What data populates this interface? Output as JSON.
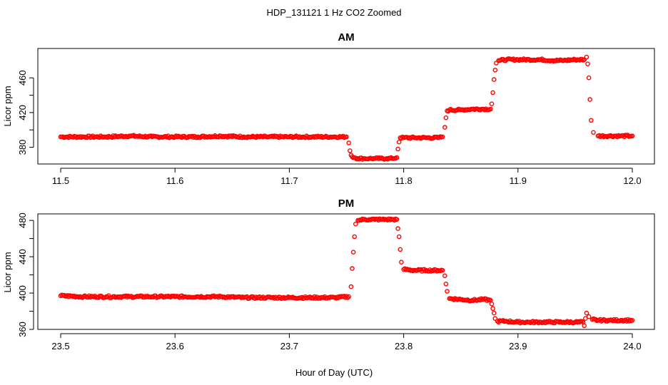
{
  "figure": {
    "title": "HDP_131121  1 Hz CO2 Zoomed",
    "xlabel": "Hour of Day (UTC)",
    "point_color": "#ff0000"
  },
  "chart_data": [
    {
      "type": "scatter",
      "title": "AM",
      "xlabel": "",
      "ylabel": "Licor ppm",
      "xlim": [
        11.5,
        12.0
      ],
      "ylim": [
        364,
        484
      ],
      "x_ticks": [
        "11.5",
        "11.6",
        "11.7",
        "11.8",
        "11.9",
        "12.0"
      ],
      "y_ticks": [
        "380",
        "420",
        "460"
      ],
      "series": [
        {
          "marker": "open-circle",
          "x": [
            11.5,
            11.52,
            11.54,
            11.56,
            11.58,
            11.6,
            11.62,
            11.64,
            11.66,
            11.68,
            11.7,
            11.72,
            11.74,
            11.75,
            11.752,
            11.753,
            11.754,
            11.755,
            11.757,
            11.76,
            11.765,
            11.77,
            11.775,
            11.78,
            11.785,
            11.79,
            11.794,
            11.795,
            11.796,
            11.797,
            11.8,
            11.81,
            11.82,
            11.83,
            11.834,
            11.836,
            11.837,
            11.838,
            11.84,
            11.85,
            11.86,
            11.87,
            11.876,
            11.877,
            11.878,
            11.879,
            11.88,
            11.881,
            11.883,
            11.89,
            11.9,
            11.91,
            11.92,
            11.93,
            11.94,
            11.95,
            11.958,
            11.96,
            11.961,
            11.962,
            11.963,
            11.964,
            11.966,
            11.97,
            11.98,
            11.99,
            12.0
          ],
          "y": [
            392,
            392,
            392,
            393,
            392,
            392,
            392,
            393,
            392,
            392,
            392,
            392,
            392,
            392,
            385,
            376,
            371,
            369,
            368,
            367,
            367,
            367,
            367,
            367,
            367,
            367,
            368,
            378,
            386,
            391,
            391,
            391,
            391,
            391,
            392,
            403,
            414,
            422,
            423,
            423,
            424,
            424,
            424,
            430,
            443,
            458,
            469,
            477,
            480,
            481,
            481,
            481,
            481,
            480,
            480,
            481,
            481,
            484,
            476,
            460,
            435,
            411,
            397,
            393,
            393,
            393,
            393
          ]
        }
      ]
    },
    {
      "type": "scatter",
      "title": "PM",
      "xlabel": "",
      "ylabel": "Licor ppm",
      "xlim": [
        23.5,
        24.0
      ],
      "ylim": [
        360,
        484
      ],
      "x_ticks": [
        "23.5",
        "23.6",
        "23.7",
        "23.8",
        "23.9",
        "24.0"
      ],
      "y_ticks": [
        "360",
        "400",
        "440",
        "480"
      ],
      "series": [
        {
          "marker": "open-circle",
          "x": [
            23.5,
            23.52,
            23.54,
            23.56,
            23.58,
            23.6,
            23.62,
            23.64,
            23.66,
            23.68,
            23.7,
            23.72,
            23.74,
            23.752,
            23.754,
            23.755,
            23.756,
            23.757,
            23.758,
            23.76,
            23.765,
            23.77,
            23.775,
            23.78,
            23.785,
            23.79,
            23.794,
            23.795,
            23.796,
            23.797,
            23.798,
            23.8,
            23.81,
            23.82,
            23.83,
            23.834,
            23.836,
            23.837,
            23.838,
            23.84,
            23.85,
            23.86,
            23.87,
            23.876,
            23.877,
            23.878,
            23.879,
            23.88,
            23.882,
            23.89,
            23.9,
            23.91,
            23.92,
            23.93,
            23.94,
            23.95,
            23.957,
            23.958,
            23.959,
            23.96,
            23.962,
            23.965,
            23.97,
            23.98,
            23.99,
            24.0
          ],
          "y": [
            397,
            396,
            396,
            396,
            396,
            396,
            396,
            396,
            395,
            395,
            395,
            395,
            395,
            396,
            407,
            427,
            445,
            462,
            476,
            480,
            481,
            481,
            481,
            481,
            481,
            481,
            481,
            471,
            462,
            448,
            434,
            426,
            425,
            425,
            425,
            425,
            419,
            410,
            402,
            394,
            393,
            392,
            393,
            392,
            388,
            383,
            378,
            372,
            369,
            369,
            368,
            368,
            368,
            368,
            368,
            368,
            368,
            364,
            372,
            378,
            374,
            371,
            370,
            370,
            370,
            370
          ]
        }
      ]
    }
  ]
}
